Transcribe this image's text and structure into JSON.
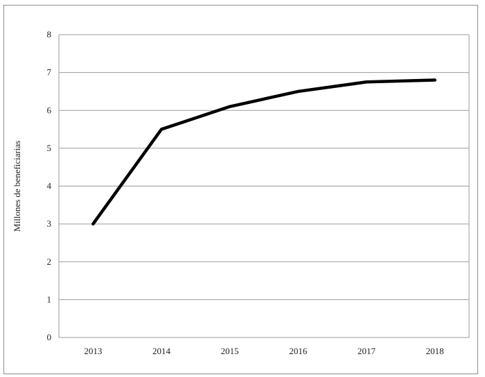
{
  "chart_data": {
    "type": "line",
    "title": "",
    "xlabel": "",
    "ylabel": "Millones de beneficiarias",
    "categories": [
      "2013",
      "2014",
      "2015",
      "2016",
      "2017",
      "2018"
    ],
    "series": [
      {
        "values": [
          3.0,
          5.5,
          6.1,
          6.5,
          6.75,
          6.8
        ],
        "color": "#000000"
      }
    ],
    "ylim": [
      0,
      8
    ],
    "yticks": [
      0,
      1,
      2,
      3,
      4,
      5,
      6,
      7,
      8
    ],
    "grid": true,
    "legend": "none"
  }
}
